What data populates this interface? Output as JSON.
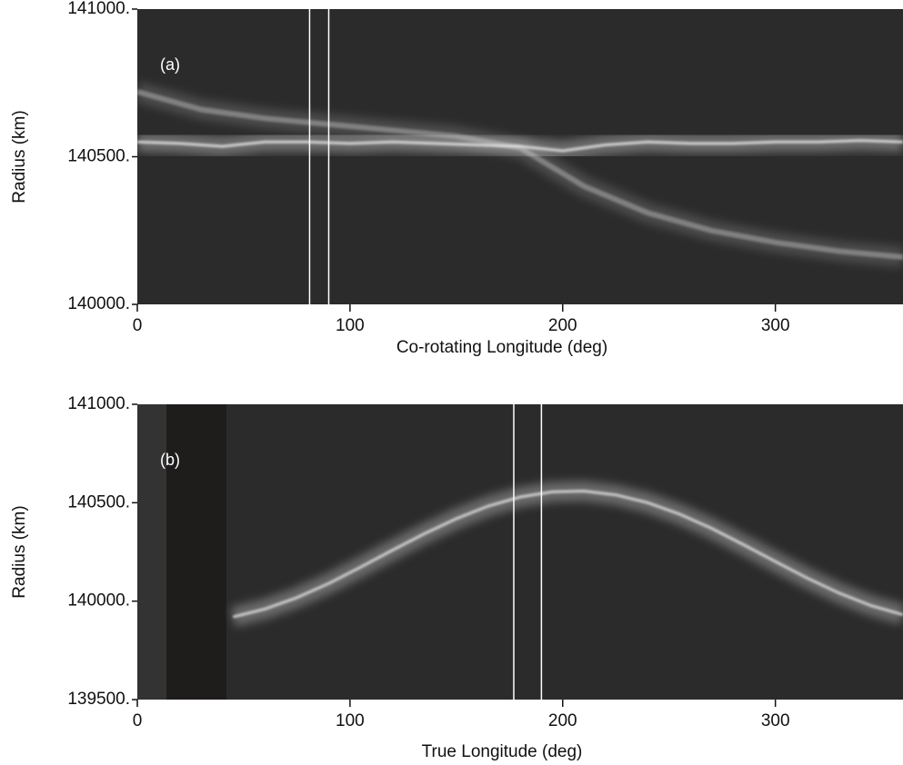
{
  "chart_data": [
    {
      "type": "line",
      "annotation": "(a)",
      "xlabel": "Co-rotating Longitude (deg)",
      "ylabel": "Radius (km)",
      "xlim": [
        0,
        360
      ],
      "xticks": [
        0,
        100,
        200,
        300
      ],
      "ylim": [
        140000,
        141000
      ],
      "yticks": [
        {
          "value": 140000,
          "label": "140000."
        },
        {
          "value": 140500,
          "label": "140500."
        },
        {
          "value": 141000,
          "label": "141000."
        }
      ],
      "vlines": [
        81,
        90
      ],
      "series": [
        {
          "color": "#8a8a8a",
          "x": [
            0,
            30,
            60,
            90,
            120,
            150,
            180,
            210,
            240,
            270,
            300,
            330,
            360
          ],
          "values": [
            140720,
            140660,
            140630,
            140610,
            140590,
            140570,
            140530,
            140400,
            140310,
            140250,
            140210,
            140180,
            140160
          ]
        },
        {
          "color": "#e6e6e6",
          "x": [
            0,
            20,
            40,
            60,
            80,
            100,
            120,
            140,
            160,
            180,
            200,
            220,
            240,
            260,
            280,
            300,
            320,
            340,
            360
          ],
          "values": [
            140550,
            140545,
            140535,
            140550,
            140550,
            140545,
            140550,
            140545,
            140540,
            140535,
            140520,
            140540,
            140550,
            140545,
            140545,
            140550,
            140550,
            140555,
            140550
          ]
        }
      ]
    },
    {
      "type": "line",
      "annotation": "(b)",
      "xlabel": "True Longitude (deg)",
      "ylabel": "Radius (km)",
      "xlim": [
        0,
        360
      ],
      "xticks": [
        0,
        100,
        200,
        300
      ],
      "ylim": [
        139500,
        141000
      ],
      "yticks": [
        {
          "value": 139500,
          "label": "139500."
        },
        {
          "value": 140000,
          "label": "140000."
        },
        {
          "value": 140500,
          "label": "140500."
        },
        {
          "value": 141000,
          "label": "141000."
        }
      ],
      "vlines": [
        177,
        190
      ],
      "series": [
        {
          "color": "#e0e0e0",
          "x": [
            45,
            60,
            75,
            90,
            105,
            120,
            135,
            150,
            165,
            180,
            195,
            210,
            225,
            240,
            255,
            270,
            285,
            300,
            315,
            330,
            345,
            360
          ],
          "values": [
            139920,
            139960,
            140018,
            140090,
            140173,
            140259,
            140343,
            140419,
            140483,
            140529,
            140555,
            140559,
            140540,
            140500,
            140442,
            140370,
            140287,
            140201,
            140117,
            140041,
            139977,
            139931
          ]
        }
      ]
    }
  ]
}
